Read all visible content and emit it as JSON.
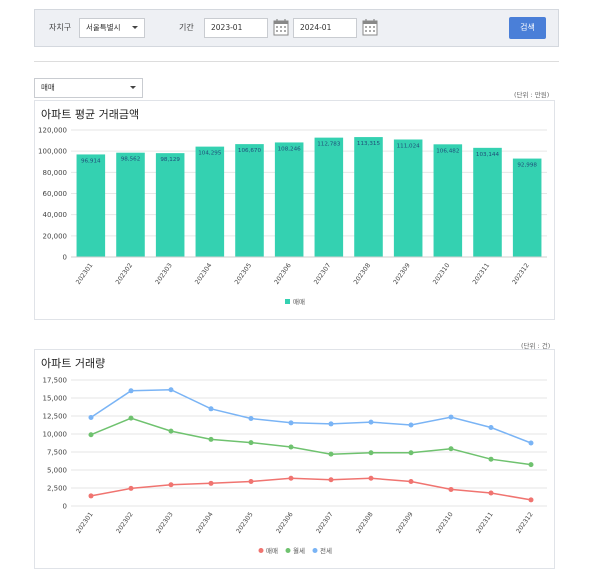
{
  "filters": {
    "region_label": "자치구",
    "region_value": "서울특별시",
    "period_label": "기간",
    "start": "2023-01",
    "end": "2024-01",
    "search_label": "검색"
  },
  "type_select": {
    "value": "매매"
  },
  "colors": {
    "bar": "#34d1b1",
    "sale": "#f07470",
    "monthly": "#6fc26f",
    "jeonse": "#7ab4f5",
    "button": "#4a7fd8"
  },
  "chart_data": [
    {
      "type": "bar",
      "title": "아파트 평균 거래금액",
      "unit_note": "(단위 : 만원)",
      "categories": [
        "202301",
        "202302",
        "202303",
        "202304",
        "202305",
        "202306",
        "202307",
        "202308",
        "202309",
        "202310",
        "202311",
        "202312"
      ],
      "series": [
        {
          "name": "매매",
          "values": [
            96914,
            98562,
            98129,
            104295,
            106670,
            108246,
            112783,
            113315,
            111024,
            106482,
            103144,
            92998
          ]
        }
      ],
      "value_labels": [
        "96,914",
        "98,562",
        "98,129",
        "104,295",
        "106,670",
        "108,246",
        "112,783",
        "113,315",
        "111,024",
        "106,482",
        "103,144",
        "92,998"
      ],
      "ylim": [
        0,
        120000
      ],
      "yticks": [
        0,
        20000,
        40000,
        60000,
        80000,
        100000,
        120000
      ],
      "ytick_labels": [
        "0",
        "20,000",
        "40,000",
        "60,000",
        "80,000",
        "100,000",
        "120,000"
      ],
      "legend": "bottom",
      "grid": true
    },
    {
      "type": "line",
      "title": "아파트 거래량",
      "unit_note": "(단위 : 건)",
      "categories": [
        "202301",
        "202302",
        "202303",
        "202304",
        "202305",
        "202306",
        "202307",
        "202308",
        "202309",
        "202310",
        "202311",
        "202312"
      ],
      "series": [
        {
          "name": "매매",
          "values": [
            1400,
            2450,
            2950,
            3150,
            3400,
            3850,
            3650,
            3850,
            3400,
            2300,
            1800,
            850
          ]
        },
        {
          "name": "월세",
          "values": [
            9900,
            12200,
            10400,
            9250,
            8800,
            8200,
            7200,
            7400,
            7400,
            7950,
            6500,
            5750
          ]
        },
        {
          "name": "전세",
          "values": [
            12300,
            16000,
            16150,
            13500,
            12150,
            11550,
            11400,
            11650,
            11250,
            12350,
            10900,
            8750
          ]
        }
      ],
      "ylim": [
        0,
        17500
      ],
      "yticks": [
        0,
        2500,
        5000,
        7500,
        10000,
        12500,
        15000,
        17500
      ],
      "ytick_labels": [
        "0",
        "2,500",
        "5,000",
        "7,500",
        "10,000",
        "12,500",
        "15,000",
        "17,500"
      ],
      "legend": "bottom",
      "grid": true
    }
  ]
}
